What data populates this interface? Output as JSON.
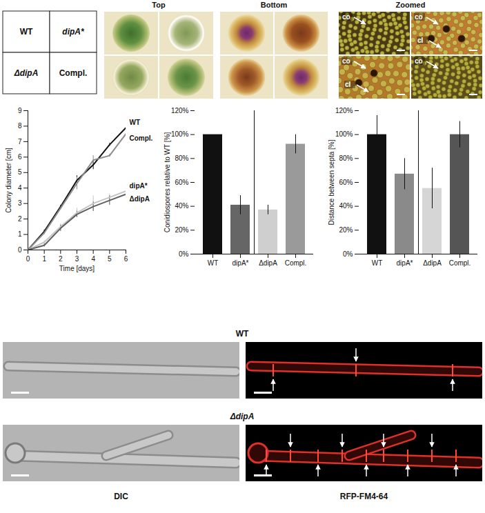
{
  "figure": {
    "genotype_key": [
      "WT",
      "dipA*",
      "ΔdipA",
      "Compl."
    ],
    "colony_headers": [
      "Top",
      "Bottom",
      "Zoomed"
    ],
    "zoom_labels": [
      [
        "co"
      ],
      [
        "co",
        "cl"
      ],
      [
        "co",
        "cl"
      ],
      [
        "co"
      ]
    ],
    "microscopy_rows": [
      "WT",
      "ΔdipA"
    ],
    "microscopy_columns": [
      "DIC",
      "RFP-FM4-64"
    ]
  },
  "chart_data": [
    {
      "type": "line",
      "x_label": "Time [days]",
      "y_label": "Colony diameter [cm]",
      "x": [
        0,
        1,
        2,
        3,
        4,
        5,
        6
      ],
      "series": [
        {
          "name": "WT",
          "color": "#111111",
          "values": [
            0,
            1.2,
            2.8,
            4.5,
            5.5,
            6.8,
            7.9
          ],
          "errors": [
            0,
            0.1,
            0.1,
            0.3,
            0.3,
            0.1,
            0.4
          ]
        },
        {
          "name": "Compl.",
          "color": "#8c8c8c",
          "values": [
            0,
            1.1,
            2.7,
            4.3,
            5.8,
            6.1,
            7.5
          ],
          "errors": [
            0,
            0.1,
            0.1,
            0.4,
            0.3,
            0.1,
            0.2
          ]
        },
        {
          "name": "dipA*",
          "color": "#c4c4c4",
          "values": [
            0,
            0.5,
            1.5,
            2.4,
            3.0,
            3.4,
            3.8
          ],
          "errors": [
            0,
            0.1,
            0.2,
            0.3,
            0.5,
            0.2,
            0.2
          ]
        },
        {
          "name": "ΔdipA",
          "color": "#5e5e5e",
          "values": [
            0,
            0.3,
            1.4,
            2.3,
            2.8,
            3.2,
            3.6
          ],
          "errors": [
            0,
            0.1,
            0.2,
            0.2,
            0.3,
            0.3,
            0.2
          ]
        }
      ],
      "xlim": [
        0,
        6
      ],
      "xticks": [
        0,
        1,
        2,
        3,
        4,
        5,
        6
      ],
      "ylim": [
        0,
        9
      ],
      "yticks": [
        0,
        1,
        2,
        3,
        4,
        5,
        6,
        7,
        8,
        9
      ],
      "legend": "right"
    },
    {
      "type": "bar",
      "y_label": "Conidiospores relative to WT [%]",
      "categories": [
        "WT",
        "dipA*",
        "ΔdipA",
        "Compl."
      ],
      "values": [
        100,
        41,
        37,
        92
      ],
      "errors": [
        0,
        8,
        4,
        8
      ],
      "colors": [
        "#111111",
        "#666666",
        "#cfcfcf",
        "#9a9a9a"
      ],
      "ylim": [
        0,
        120
      ],
      "yticks": [
        {
          "value": 0,
          "label": "0%"
        },
        {
          "value": 20,
          "label": "20%"
        },
        {
          "value": 40,
          "label": "40%"
        },
        {
          "value": 60,
          "label": "60%"
        },
        {
          "value": 80,
          "label": "80%"
        },
        {
          "value": 100,
          "label": "100%"
        },
        {
          "value": 120,
          "label": "120%"
        }
      ]
    },
    {
      "type": "bar",
      "y_label": "Distance between septa [%]",
      "categories": [
        "WT",
        "dipA*",
        "ΔdipA",
        "Compl."
      ],
      "values": [
        100,
        67,
        55,
        100
      ],
      "errors": [
        16,
        13,
        17,
        11
      ],
      "colors": [
        "#111111",
        "#8a8a8a",
        "#d6d6d6",
        "#555555"
      ],
      "ylim": [
        0,
        120
      ],
      "yticks": [
        {
          "value": 0,
          "label": "0%"
        },
        {
          "value": 20,
          "label": "20%"
        },
        {
          "value": 40,
          "label": "40%"
        },
        {
          "value": 60,
          "label": "60%"
        },
        {
          "value": 80,
          "label": "80%"
        },
        {
          "value": 100,
          "label": "100%"
        },
        {
          "value": 120,
          "label": "120%"
        }
      ]
    }
  ]
}
